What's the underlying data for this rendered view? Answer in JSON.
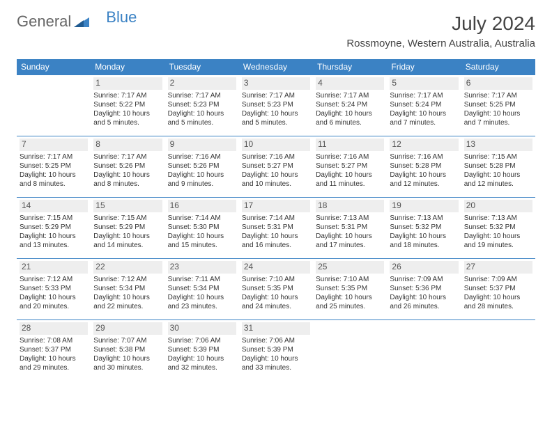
{
  "logo": {
    "text_general": "General",
    "text_blue": "Blue"
  },
  "header": {
    "month_title": "July 2024",
    "location": "Rossmoyne, Western Australia, Australia"
  },
  "colors": {
    "header_bg": "#3b82c4",
    "header_text": "#ffffff",
    "daynum_bg": "#eeeeee",
    "row_border": "#3b82c4",
    "body_text": "#333333"
  },
  "day_headers": [
    "Sunday",
    "Monday",
    "Tuesday",
    "Wednesday",
    "Thursday",
    "Friday",
    "Saturday"
  ],
  "weeks": [
    [
      {
        "n": "",
        "sr": "",
        "ss": "",
        "d1": "",
        "d2": ""
      },
      {
        "n": "1",
        "sr": "Sunrise: 7:17 AM",
        "ss": "Sunset: 5:22 PM",
        "d1": "Daylight: 10 hours",
        "d2": "and 5 minutes."
      },
      {
        "n": "2",
        "sr": "Sunrise: 7:17 AM",
        "ss": "Sunset: 5:23 PM",
        "d1": "Daylight: 10 hours",
        "d2": "and 5 minutes."
      },
      {
        "n": "3",
        "sr": "Sunrise: 7:17 AM",
        "ss": "Sunset: 5:23 PM",
        "d1": "Daylight: 10 hours",
        "d2": "and 5 minutes."
      },
      {
        "n": "4",
        "sr": "Sunrise: 7:17 AM",
        "ss": "Sunset: 5:24 PM",
        "d1": "Daylight: 10 hours",
        "d2": "and 6 minutes."
      },
      {
        "n": "5",
        "sr": "Sunrise: 7:17 AM",
        "ss": "Sunset: 5:24 PM",
        "d1": "Daylight: 10 hours",
        "d2": "and 7 minutes."
      },
      {
        "n": "6",
        "sr": "Sunrise: 7:17 AM",
        "ss": "Sunset: 5:25 PM",
        "d1": "Daylight: 10 hours",
        "d2": "and 7 minutes."
      }
    ],
    [
      {
        "n": "7",
        "sr": "Sunrise: 7:17 AM",
        "ss": "Sunset: 5:25 PM",
        "d1": "Daylight: 10 hours",
        "d2": "and 8 minutes."
      },
      {
        "n": "8",
        "sr": "Sunrise: 7:17 AM",
        "ss": "Sunset: 5:26 PM",
        "d1": "Daylight: 10 hours",
        "d2": "and 8 minutes."
      },
      {
        "n": "9",
        "sr": "Sunrise: 7:16 AM",
        "ss": "Sunset: 5:26 PM",
        "d1": "Daylight: 10 hours",
        "d2": "and 9 minutes."
      },
      {
        "n": "10",
        "sr": "Sunrise: 7:16 AM",
        "ss": "Sunset: 5:27 PM",
        "d1": "Daylight: 10 hours",
        "d2": "and 10 minutes."
      },
      {
        "n": "11",
        "sr": "Sunrise: 7:16 AM",
        "ss": "Sunset: 5:27 PM",
        "d1": "Daylight: 10 hours",
        "d2": "and 11 minutes."
      },
      {
        "n": "12",
        "sr": "Sunrise: 7:16 AM",
        "ss": "Sunset: 5:28 PM",
        "d1": "Daylight: 10 hours",
        "d2": "and 12 minutes."
      },
      {
        "n": "13",
        "sr": "Sunrise: 7:15 AM",
        "ss": "Sunset: 5:28 PM",
        "d1": "Daylight: 10 hours",
        "d2": "and 12 minutes."
      }
    ],
    [
      {
        "n": "14",
        "sr": "Sunrise: 7:15 AM",
        "ss": "Sunset: 5:29 PM",
        "d1": "Daylight: 10 hours",
        "d2": "and 13 minutes."
      },
      {
        "n": "15",
        "sr": "Sunrise: 7:15 AM",
        "ss": "Sunset: 5:29 PM",
        "d1": "Daylight: 10 hours",
        "d2": "and 14 minutes."
      },
      {
        "n": "16",
        "sr": "Sunrise: 7:14 AM",
        "ss": "Sunset: 5:30 PM",
        "d1": "Daylight: 10 hours",
        "d2": "and 15 minutes."
      },
      {
        "n": "17",
        "sr": "Sunrise: 7:14 AM",
        "ss": "Sunset: 5:31 PM",
        "d1": "Daylight: 10 hours",
        "d2": "and 16 minutes."
      },
      {
        "n": "18",
        "sr": "Sunrise: 7:13 AM",
        "ss": "Sunset: 5:31 PM",
        "d1": "Daylight: 10 hours",
        "d2": "and 17 minutes."
      },
      {
        "n": "19",
        "sr": "Sunrise: 7:13 AM",
        "ss": "Sunset: 5:32 PM",
        "d1": "Daylight: 10 hours",
        "d2": "and 18 minutes."
      },
      {
        "n": "20",
        "sr": "Sunrise: 7:13 AM",
        "ss": "Sunset: 5:32 PM",
        "d1": "Daylight: 10 hours",
        "d2": "and 19 minutes."
      }
    ],
    [
      {
        "n": "21",
        "sr": "Sunrise: 7:12 AM",
        "ss": "Sunset: 5:33 PM",
        "d1": "Daylight: 10 hours",
        "d2": "and 20 minutes."
      },
      {
        "n": "22",
        "sr": "Sunrise: 7:12 AM",
        "ss": "Sunset: 5:34 PM",
        "d1": "Daylight: 10 hours",
        "d2": "and 22 minutes."
      },
      {
        "n": "23",
        "sr": "Sunrise: 7:11 AM",
        "ss": "Sunset: 5:34 PM",
        "d1": "Daylight: 10 hours",
        "d2": "and 23 minutes."
      },
      {
        "n": "24",
        "sr": "Sunrise: 7:10 AM",
        "ss": "Sunset: 5:35 PM",
        "d1": "Daylight: 10 hours",
        "d2": "and 24 minutes."
      },
      {
        "n": "25",
        "sr": "Sunrise: 7:10 AM",
        "ss": "Sunset: 5:35 PM",
        "d1": "Daylight: 10 hours",
        "d2": "and 25 minutes."
      },
      {
        "n": "26",
        "sr": "Sunrise: 7:09 AM",
        "ss": "Sunset: 5:36 PM",
        "d1": "Daylight: 10 hours",
        "d2": "and 26 minutes."
      },
      {
        "n": "27",
        "sr": "Sunrise: 7:09 AM",
        "ss": "Sunset: 5:37 PM",
        "d1": "Daylight: 10 hours",
        "d2": "and 28 minutes."
      }
    ],
    [
      {
        "n": "28",
        "sr": "Sunrise: 7:08 AM",
        "ss": "Sunset: 5:37 PM",
        "d1": "Daylight: 10 hours",
        "d2": "and 29 minutes."
      },
      {
        "n": "29",
        "sr": "Sunrise: 7:07 AM",
        "ss": "Sunset: 5:38 PM",
        "d1": "Daylight: 10 hours",
        "d2": "and 30 minutes."
      },
      {
        "n": "30",
        "sr": "Sunrise: 7:06 AM",
        "ss": "Sunset: 5:39 PM",
        "d1": "Daylight: 10 hours",
        "d2": "and 32 minutes."
      },
      {
        "n": "31",
        "sr": "Sunrise: 7:06 AM",
        "ss": "Sunset: 5:39 PM",
        "d1": "Daylight: 10 hours",
        "d2": "and 33 minutes."
      },
      {
        "n": "",
        "sr": "",
        "ss": "",
        "d1": "",
        "d2": ""
      },
      {
        "n": "",
        "sr": "",
        "ss": "",
        "d1": "",
        "d2": ""
      },
      {
        "n": "",
        "sr": "",
        "ss": "",
        "d1": "",
        "d2": ""
      }
    ]
  ]
}
